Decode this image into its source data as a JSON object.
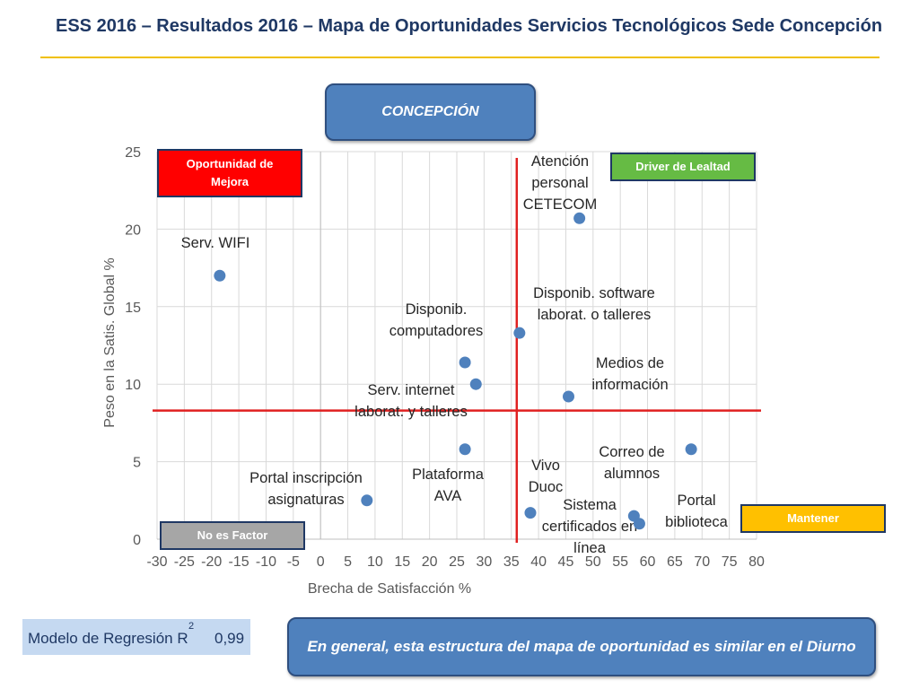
{
  "header": {
    "title": "ESS 2016 – Resultados 2016 – Mapa de Oportunidades Servicios Tecnológicos Sede Concepción"
  },
  "region_label": "CONCEPCIÓN",
  "quadrants": {
    "top_left": {
      "label": "Oportunidad de Mejora",
      "color": "#ff0000"
    },
    "top_right": {
      "label": "Driver de Lealtad",
      "color": "#66bb44"
    },
    "bottom_left": {
      "label": "No es Factor",
      "color": "#a6a6a6"
    },
    "bottom_right": {
      "label": "Mantener",
      "color": "#ffc000"
    }
  },
  "regression": {
    "label": "Modelo de Regresión R",
    "superscript": "2",
    "value": "0,99"
  },
  "footer_note": "En general, esta estructura del mapa de oportunidad es similar en el Diurno",
  "chart_data": {
    "type": "scatter",
    "xlabel": "Brecha de Satisfacción %",
    "ylabel": "Peso en la Satis. Global %",
    "xlim": [
      -30,
      80
    ],
    "ylim": [
      0,
      25
    ],
    "x_ticks": [
      -30,
      -25,
      -20,
      -15,
      -10,
      -5,
      0,
      5,
      10,
      15,
      20,
      25,
      30,
      35,
      40,
      45,
      50,
      55,
      60,
      65,
      70,
      75,
      80
    ],
    "y_ticks": [
      0,
      5,
      10,
      15,
      20,
      25
    ],
    "grid": true,
    "marker_color": "#4f81bd",
    "reference_lines": {
      "x": 36,
      "y": 8.3,
      "color": "#e02020"
    },
    "points": [
      {
        "x": -18.5,
        "y": 17.0,
        "lines": [
          "Serv. WIFI"
        ]
      },
      {
        "x": 47.5,
        "y": 20.7,
        "lines": [
          "Atención",
          "personal",
          "CETECOM"
        ]
      },
      {
        "x": 36.5,
        "y": 13.3,
        "lines": [
          "Disponib. software",
          "laborat. o talleres"
        ]
      },
      {
        "x": 26.5,
        "y": 11.4,
        "lines": [
          "Disponib.",
          "computadores"
        ]
      },
      {
        "x": 28.5,
        "y": 10.0,
        "lines": [
          "Serv. internet",
          "laborat. y talleres"
        ]
      },
      {
        "x": 45.5,
        "y": 9.2,
        "lines": [
          "Medios de",
          "información"
        ]
      },
      {
        "x": 26.5,
        "y": 5.8,
        "lines": [
          "Plataforma",
          "AVA"
        ]
      },
      {
        "x": 68.0,
        "y": 5.8,
        "lines": [
          "Correo de",
          "alumnos"
        ]
      },
      {
        "x": 8.5,
        "y": 2.5,
        "lines": [
          "Portal inscripción",
          "asignaturas"
        ]
      },
      {
        "x": 38.5,
        "y": 1.7,
        "lines": [
          "Vivo",
          "Duoc"
        ]
      },
      {
        "x": 57.5,
        "y": 1.5,
        "lines": [
          "Sistema",
          "certificados en",
          "línea"
        ]
      },
      {
        "x": 58.5,
        "y": 1.0,
        "lines": [
          "Portal",
          "biblioteca"
        ]
      }
    ]
  }
}
